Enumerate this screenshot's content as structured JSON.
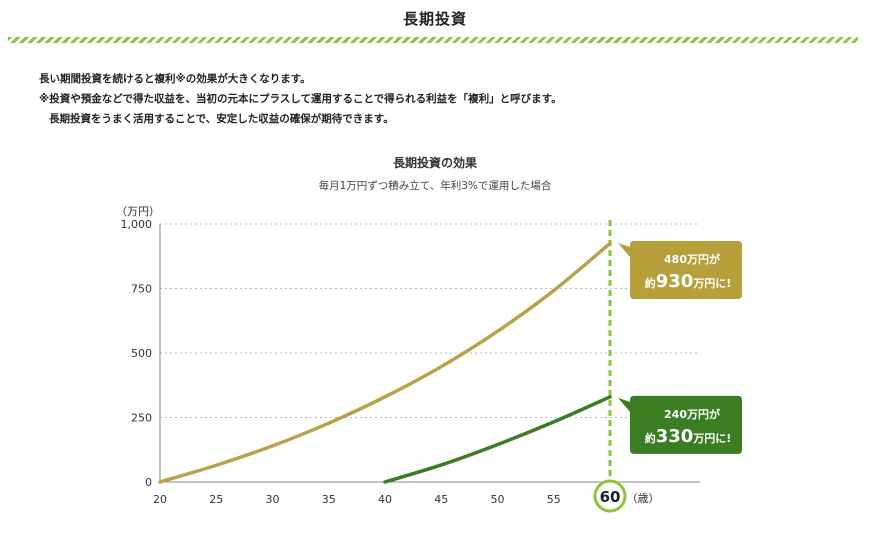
{
  "header": {
    "title": "長期投資"
  },
  "intro": {
    "line1": "長い期間投資を続けると複利※の効果が大きくなります。",
    "line2": "※投資や預金などで得た収益を、当初の元本にプラスして運用することで得られる利益を「複利」と呼びます。",
    "line3": "長期投資をうまく活用することで、安定した収益の確保が期待できます。"
  },
  "chart_data": {
    "type": "line",
    "title": "長期投資の効果",
    "subtitle": "毎月1万円ずつ積み立て、年利3%で運用した場合",
    "ylabel": "（万円）",
    "xlabel": "（歳）",
    "xlim": [
      20,
      68
    ],
    "ylim": [
      0,
      1000
    ],
    "x_ticks": [
      "20",
      "25",
      "30",
      "35",
      "40",
      "45",
      "50",
      "55",
      "60"
    ],
    "y_ticks": [
      "0",
      "250",
      "500",
      "750",
      "1,000"
    ],
    "grid": "horizontal-dashed",
    "highlight_x": 60,
    "highlight_label": "60",
    "series": [
      {
        "color": "#b8a34a",
        "x": [
          20,
          25,
          30,
          35,
          40,
          45,
          50,
          55,
          60
        ],
        "y": [
          0,
          65,
          140,
          228,
          330,
          447,
          584,
          742,
          925
        ]
      },
      {
        "color": "#3a7d22",
        "x": [
          40,
          45,
          50,
          55,
          60
        ],
        "y": [
          0,
          66,
          145,
          233,
          330
        ]
      }
    ],
    "callouts": [
      {
        "line1": "480万円が",
        "pre": "約",
        "num": "930",
        "post": "万円に!",
        "color": "#b79f3c",
        "y": 930
      },
      {
        "line1": "240万円が",
        "pre": "約",
        "num": "330",
        "post": "万円に!",
        "color": "#3a7d22",
        "y": 330
      }
    ],
    "colors": {
      "grid": "#bbbbbb",
      "axis": "#888888",
      "highlight": "#8cc63f"
    }
  }
}
